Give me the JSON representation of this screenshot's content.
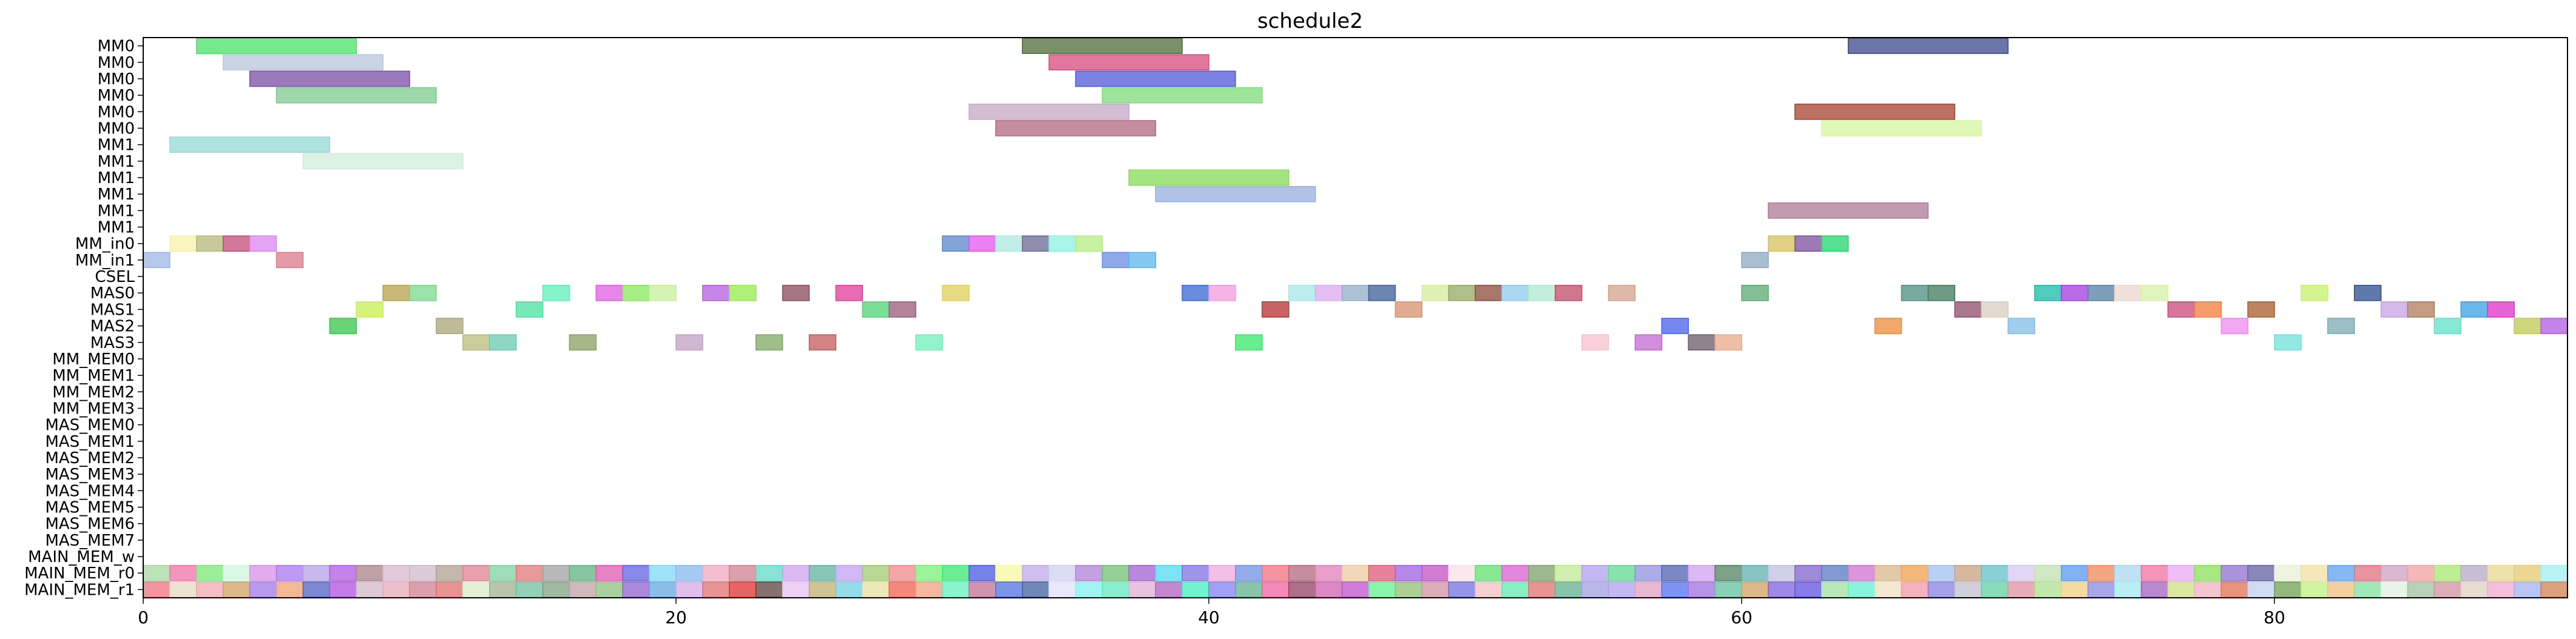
{
  "chart_data": {
    "type": "gantt",
    "title": "schedule2",
    "xlim": [
      0,
      91
    ],
    "x_ticks": [
      0,
      20,
      40,
      60,
      80
    ],
    "rows": [
      "MM0",
      "MM0",
      "MM0",
      "MM0",
      "MM0",
      "MM0",
      "MM1",
      "MM1",
      "MM1",
      "MM1",
      "MM1",
      "MM1",
      "MM_in0",
      "MM_in1",
      "CSEL",
      "MAS0",
      "MAS1",
      "MAS2",
      "MAS3",
      "MM_MEM0",
      "MM_MEM1",
      "MM_MEM2",
      "MM_MEM3",
      "MAS_MEM0",
      "MAS_MEM1",
      "MAS_MEM2",
      "MAS_MEM3",
      "MAS_MEM4",
      "MAS_MEM5",
      "MAS_MEM6",
      "MAS_MEM7",
      "MAIN_MEM_w",
      "MAIN_MEM_r0",
      "MAIN_MEM_r1"
    ],
    "tasks": [
      {
        "row": 0,
        "start": 2,
        "end": 8,
        "color": "#4be06a"
      },
      {
        "row": 0,
        "start": 33,
        "end": 39,
        "color": "#4d6b3a"
      },
      {
        "row": 0,
        "start": 64,
        "end": 70,
        "color": "#3a478c"
      },
      {
        "row": 1,
        "start": 3,
        "end": 9,
        "color": "#b8c6dc"
      },
      {
        "row": 1,
        "start": 34,
        "end": 40,
        "color": "#d84a7e"
      },
      {
        "row": 2,
        "start": 4,
        "end": 10,
        "color": "#7a4ea6"
      },
      {
        "row": 2,
        "start": 35,
        "end": 41,
        "color": "#5058d8"
      },
      {
        "row": 3,
        "start": 5,
        "end": 11,
        "color": "#7cc990"
      },
      {
        "row": 3,
        "start": 36,
        "end": 42,
        "color": "#7ddc7a"
      },
      {
        "row": 4,
        "start": 31,
        "end": 37,
        "color": "#c6a8c4"
      },
      {
        "row": 4,
        "start": 62,
        "end": 68,
        "color": "#a8402e"
      },
      {
        "row": 5,
        "start": 32,
        "end": 38,
        "color": "#b06880"
      },
      {
        "row": 5,
        "start": 63,
        "end": 69,
        "color": "#d6f7a0"
      },
      {
        "row": 6,
        "start": 1,
        "end": 7,
        "color": "#94dad6"
      },
      {
        "row": 7,
        "start": 6,
        "end": 12,
        "color": "#d2ecdc"
      },
      {
        "row": 8,
        "start": 37,
        "end": 43,
        "color": "#84da56"
      },
      {
        "row": 9,
        "start": 38,
        "end": 44,
        "color": "#96aedc"
      },
      {
        "row": 10,
        "start": 61,
        "end": 67,
        "color": "#ac7a96"
      },
      {
        "row": 12,
        "start": 1,
        "end": 2,
        "color": "#f6f3a8"
      },
      {
        "row": 12,
        "start": 2,
        "end": 3,
        "color": "#b4b87a"
      },
      {
        "row": 12,
        "start": 3,
        "end": 4,
        "color": "#c24a78"
      },
      {
        "row": 12,
        "start": 4,
        "end": 5,
        "color": "#dc84f0"
      },
      {
        "row": 12,
        "start": 30,
        "end": 31,
        "color": "#5886c8"
      },
      {
        "row": 12,
        "start": 31,
        "end": 32,
        "color": "#e654ee"
      },
      {
        "row": 12,
        "start": 32,
        "end": 33,
        "color": "#aee8e0"
      },
      {
        "row": 12,
        "start": 33,
        "end": 34,
        "color": "#6a6896"
      },
      {
        "row": 12,
        "start": 34,
        "end": 35,
        "color": "#8cf2e0"
      },
      {
        "row": 12,
        "start": 35,
        "end": 36,
        "color": "#b4ee86"
      },
      {
        "row": 12,
        "start": 61,
        "end": 62,
        "color": "#d6c25c"
      },
      {
        "row": 12,
        "start": 62,
        "end": 63,
        "color": "#7a4e9e"
      },
      {
        "row": 12,
        "start": 63,
        "end": 64,
        "color": "#22d46e"
      },
      {
        "row": 13,
        "start": 0,
        "end": 1,
        "color": "#9cb6e2"
      },
      {
        "row": 13,
        "start": 5,
        "end": 6,
        "color": "#dc7a8a"
      },
      {
        "row": 13,
        "start": 36,
        "end": 37,
        "color": "#6a8ce6"
      },
      {
        "row": 13,
        "start": 37,
        "end": 38,
        "color": "#5cb6ee"
      },
      {
        "row": 13,
        "start": 60,
        "end": 61,
        "color": "#8ca8c0"
      },
      {
        "row": 15,
        "start": 9,
        "end": 10,
        "color": "#b8a04a"
      },
      {
        "row": 15,
        "start": 10,
        "end": 11,
        "color": "#78d88a"
      },
      {
        "row": 15,
        "start": 15,
        "end": 16,
        "color": "#5cf0b8"
      },
      {
        "row": 15,
        "start": 17,
        "end": 18,
        "color": "#e05ce0"
      },
      {
        "row": 15,
        "start": 18,
        "end": 19,
        "color": "#86e85a"
      },
      {
        "row": 15,
        "start": 19,
        "end": 20,
        "color": "#c8ee9c"
      },
      {
        "row": 15,
        "start": 21,
        "end": 22,
        "color": "#b45ce0"
      },
      {
        "row": 15,
        "start": 22,
        "end": 23,
        "color": "#96ea4e"
      },
      {
        "row": 15,
        "start": 24,
        "end": 25,
        "color": "#8a4858"
      },
      {
        "row": 15,
        "start": 26,
        "end": 27,
        "color": "#e03a9a"
      },
      {
        "row": 15,
        "start": 30,
        "end": 31,
        "color": "#e0d05a"
      },
      {
        "row": 15,
        "start": 39,
        "end": 40,
        "color": "#3866d4"
      },
      {
        "row": 15,
        "start": 40,
        "end": 41,
        "color": "#f29ae0"
      },
      {
        "row": 15,
        "start": 43,
        "end": 44,
        "color": "#a6e6e6"
      },
      {
        "row": 15,
        "start": 44,
        "end": 45,
        "color": "#dcaaf0"
      },
      {
        "row": 15,
        "start": 45,
        "end": 46,
        "color": "#90aec6"
      },
      {
        "row": 15,
        "start": 46,
        "end": 47,
        "color": "#3a5e96"
      },
      {
        "row": 15,
        "start": 48,
        "end": 49,
        "color": "#d6ec9e"
      },
      {
        "row": 15,
        "start": 49,
        "end": 50,
        "color": "#96a866"
      },
      {
        "row": 15,
        "start": 50,
        "end": 51,
        "color": "#8a4a38"
      },
      {
        "row": 15,
        "start": 51,
        "end": 52,
        "color": "#8ecaee"
      },
      {
        "row": 15,
        "start": 52,
        "end": 53,
        "color": "#aee8d0"
      },
      {
        "row": 15,
        "start": 53,
        "end": 54,
        "color": "#c04a6a"
      },
      {
        "row": 15,
        "start": 55,
        "end": 56,
        "color": "#d4a08a"
      },
      {
        "row": 15,
        "start": 60,
        "end": 61,
        "color": "#5aa872"
      },
      {
        "row": 15,
        "start": 66,
        "end": 67,
        "color": "#4a8e82"
      },
      {
        "row": 15,
        "start": 67,
        "end": 68,
        "color": "#3e7a5a"
      },
      {
        "row": 15,
        "start": 71,
        "end": 72,
        "color": "#1ab8a8"
      },
      {
        "row": 15,
        "start": 72,
        "end": 73,
        "color": "#a23ae0"
      },
      {
        "row": 15,
        "start": 73,
        "end": 74,
        "color": "#547ea6"
      },
      {
        "row": 15,
        "start": 74,
        "end": 75,
        "color": "#ecd6cc"
      },
      {
        "row": 15,
        "start": 75,
        "end": 76,
        "color": "#d8f0a8"
      },
      {
        "row": 15,
        "start": 81,
        "end": 82,
        "color": "#c6f06a"
      },
      {
        "row": 15,
        "start": 83,
        "end": 84,
        "color": "#2a4e8e"
      },
      {
        "row": 16,
        "start": 8,
        "end": 9,
        "color": "#c8ee4e"
      },
      {
        "row": 16,
        "start": 14,
        "end": 15,
        "color": "#4ae0a0"
      },
      {
        "row": 16,
        "start": 27,
        "end": 28,
        "color": "#4cd470"
      },
      {
        "row": 16,
        "start": 28,
        "end": 29,
        "color": "#9a5a7a"
      },
      {
        "row": 16,
        "start": 42,
        "end": 43,
        "color": "#b83030"
      },
      {
        "row": 16,
        "start": 47,
        "end": 48,
        "color": "#d8906a"
      },
      {
        "row": 16,
        "start": 68,
        "end": 69,
        "color": "#8e4a6a"
      },
      {
        "row": 16,
        "start": 69,
        "end": 70,
        "color": "#d8ccc0"
      },
      {
        "row": 16,
        "start": 76,
        "end": 77,
        "color": "#c8487a"
      },
      {
        "row": 16,
        "start": 77,
        "end": 78,
        "color": "#f47c3a"
      },
      {
        "row": 16,
        "start": 79,
        "end": 80,
        "color": "#a85a2a"
      },
      {
        "row": 16,
        "start": 84,
        "end": 85,
        "color": "#c6a0e6"
      },
      {
        "row": 16,
        "start": 85,
        "end": 86,
        "color": "#b07a5a"
      },
      {
        "row": 16,
        "start": 87,
        "end": 88,
        "color": "#36a0e6"
      },
      {
        "row": 16,
        "start": 88,
        "end": 89,
        "color": "#e030c8"
      },
      {
        "row": 17,
        "start": 7,
        "end": 8,
        "color": "#36c64a"
      },
      {
        "row": 17,
        "start": 11,
        "end": 12,
        "color": "#a8a478"
      },
      {
        "row": 17,
        "start": 57,
        "end": 58,
        "color": "#4860ea"
      },
      {
        "row": 17,
        "start": 65,
        "end": 66,
        "color": "#ee8a3a"
      },
      {
        "row": 17,
        "start": 70,
        "end": 71,
        "color": "#80bee6"
      },
      {
        "row": 17,
        "start": 78,
        "end": 79,
        "color": "#ee8aee"
      },
      {
        "row": 17,
        "start": 82,
        "end": 83,
        "color": "#7aaab0"
      },
      {
        "row": 17,
        "start": 86,
        "end": 87,
        "color": "#5ee0c8"
      },
      {
        "row": 17,
        "start": 89,
        "end": 90,
        "color": "#c0c850"
      },
      {
        "row": 17,
        "start": 90,
        "end": 91,
        "color": "#b05ae0"
      },
      {
        "row": 18,
        "start": 12,
        "end": 13,
        "color": "#b8bc7a"
      },
      {
        "row": 18,
        "start": 13,
        "end": 14,
        "color": "#6ac8b0"
      },
      {
        "row": 18,
        "start": 16,
        "end": 17,
        "color": "#88a060"
      },
      {
        "row": 18,
        "start": 20,
        "end": 21,
        "color": "#c0a0c4"
      },
      {
        "row": 18,
        "start": 23,
        "end": 24,
        "color": "#80a860"
      },
      {
        "row": 18,
        "start": 25,
        "end": 26,
        "color": "#c45a5a"
      },
      {
        "row": 18,
        "start": 29,
        "end": 30,
        "color": "#6ef0b8"
      },
      {
        "row": 18,
        "start": 41,
        "end": 42,
        "color": "#36e86a"
      },
      {
        "row": 18,
        "start": 54,
        "end": 55,
        "color": "#f4c0cc"
      },
      {
        "row": 18,
        "start": 56,
        "end": 57,
        "color": "#c068d0"
      },
      {
        "row": 18,
        "start": 58,
        "end": 59,
        "color": "#6a5a6a"
      },
      {
        "row": 18,
        "start": 59,
        "end": 60,
        "color": "#e8a888"
      },
      {
        "row": 18,
        "start": 80,
        "end": 81,
        "color": "#6ee0d8"
      }
    ],
    "memory_rows": {
      "row32_colors": [
        "#a8d8a0",
        "#f072a8",
        "#78e878",
        "#d0f4dc",
        "#d890e8",
        "#a878f0",
        "#b4a0e8",
        "#b05ae0",
        "#a8808a",
        "#d8b8d0",
        "#d0b8c8",
        "#b0a090",
        "#e08090",
        "#80d0a0",
        "#e07878",
        "#a0a0a0",
        "#60b080",
        "#e058b0",
        "#6060e0",
        "#80d8f8",
        "#88b8f0",
        "#f0a8c0",
        "#d08090",
        "#60d8c8",
        "#d0a0f0",
        "#60b0a0",
        "#c0a0f0",
        "#a0c870",
        "#f08888",
        "#78f078",
        "#38e870",
        "#4858e0",
        "#f8f8a0",
        "#c0a8e8",
        "#d0d0f0",
        "#b080d8",
        "#70c070",
        "#a060d0",
        "#50d8f0",
        "#8070e0",
        "#f0a8e0",
        "#7090e8",
        "#f07080",
        "#b06880",
        "#e080b8",
        "#f0c8a0",
        "#e05878",
        "#a060e0",
        "#c050c0",
        "#f8e0e8",
        "#60e070",
        "#d860d0",
        "#80a068",
        "#c0e890",
        "#b0a0f0",
        "#60d890",
        "#9090e0",
        "#5060b0",
        "#d0a0f0",
        "#508060",
        "#60b0b0",
        "#c0c0e0",
        "#8060d0",
        "#5878c0",
        "#d070d0",
        "#d8b888",
        "#f0a050",
        "#a0c0f0",
        "#c8a080",
        "#60c0c8",
        "#d8c8f0",
        "#c0e0b0",
        "#5898f0",
        "#f08858",
        "#a8d8f0",
        "#f070a0",
        "#e8a8f0",
        "#88e058",
        "#9070d0",
        "#6060a0",
        "#e8f0d8",
        "#f0e0a0",
        "#60a0f0",
        "#e07080",
        "#d0a0c0",
        "#f0a0a0",
        "#a8e870",
        "#b8a8c8",
        "#e8d890",
        "#e8c870",
        "#a0f0f0"
      ],
      "row33_colors": [
        "#f07080",
        "#e8d8c0",
        "#f0a8b0",
        "#d0a060",
        "#a078e8",
        "#f0a070",
        "#5060c0",
        "#b050e0",
        "#d0b8c8",
        "#e8a8b8",
        "#d08090",
        "#e07070",
        "#d8ecc8",
        "#a0b090",
        "#70c0a0",
        "#80a080",
        "#c0a0a8",
        "#8ec080",
        "#9060d0",
        "#60a8e0",
        "#d8a8e8",
        "#e07070",
        "#e03030",
        "#604040",
        "#e8c0f0",
        "#c0b070",
        "#70d0e0",
        "#e8e0a0",
        "#f06050",
        "#f0a080",
        "#60f0c0",
        "#c07090",
        "#5070e0",
        "#4060a0",
        "#e0e0f8",
        "#80f0f0",
        "#60e8c0",
        "#e0b0d0",
        "#b060c0",
        "#40f0c0",
        "#8080f0",
        "#60b090",
        "#f060a0",
        "#904060",
        "#d060b0",
        "#c050d0",
        "#60f090",
        "#90c070",
        "#d090a0",
        "#7070e0",
        "#f0c0c0",
        "#60e8b0",
        "#e07070",
        "#60b090",
        "#a0a0e0",
        "#b0a0f0",
        "#e0a0c0",
        "#5070f0",
        "#a070e0",
        "#60c0a0",
        "#d0a060",
        "#8060e0",
        "#6050e0",
        "#a0e0a0",
        "#60f0d0",
        "#f0e0c0",
        "#f098a8",
        "#8880e0",
        "#c0c0d0",
        "#60d0a0",
        "#e090a0",
        "#b0e090",
        "#f0d080",
        "#8888e0",
        "#a0e8f0",
        "#a060c0",
        "#d0e080",
        "#f0b0c0",
        "#e07050",
        "#c0d0f0",
        "#70a050",
        "#c0f080",
        "#f0c080",
        "#80e0a0",
        "#e0f0e0",
        "#a0c0a0",
        "#d090a0",
        "#e0d0c0",
        "#f0a8d0",
        "#a0b0f0",
        "#d08050"
      ]
    }
  }
}
